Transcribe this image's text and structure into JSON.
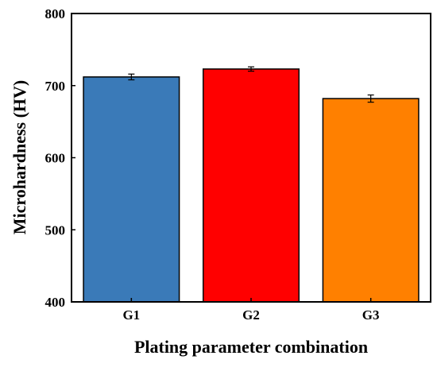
{
  "chart_data": {
    "type": "bar",
    "xlabel": "Plating parameter combination",
    "ylabel": "Microhardness (HV)",
    "ylim": [
      400,
      800
    ],
    "yticks": [
      400,
      500,
      600,
      700,
      800
    ],
    "yticks_text": [
      "400",
      "500",
      "600",
      "700",
      "800"
    ],
    "categories": [
      "G1",
      "G2",
      "G3"
    ],
    "values": [
      712,
      723,
      682
    ],
    "errors": [
      4,
      3,
      5
    ],
    "colors": [
      "#3a7ab8",
      "#ff0000",
      "#ff8000"
    ],
    "grid": false,
    "legend": "none"
  }
}
